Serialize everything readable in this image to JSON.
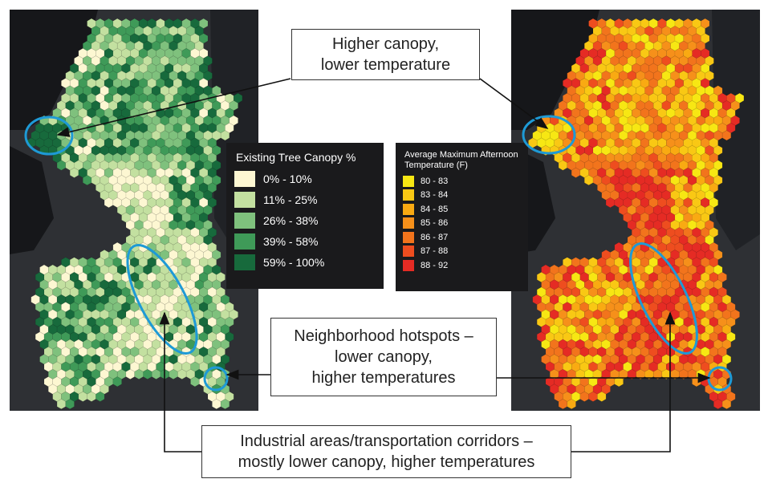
{
  "canopy_legend": {
    "title": "Existing Tree Canopy %",
    "items": [
      {
        "label": "0% - 10%",
        "color": "#fdf7d2"
      },
      {
        "label": "11% - 25%",
        "color": "#c3e0a0"
      },
      {
        "label": "26% - 38%",
        "color": "#7fc17d"
      },
      {
        "label": "39% - 58%",
        "color": "#3f9a58"
      },
      {
        "label": "59% - 100%",
        "color": "#176a3c"
      }
    ]
  },
  "temperature_legend": {
    "title": "Average Maximum Afternoon Temperature (F)",
    "items": [
      {
        "label": "80 - 83",
        "color": "#f7e713"
      },
      {
        "label": "83 - 84",
        "color": "#f9c814"
      },
      {
        "label": "84 - 85",
        "color": "#f9aa12"
      },
      {
        "label": "85 - 86",
        "color": "#f6901a"
      },
      {
        "label": "86 - 87",
        "color": "#f2741c"
      },
      {
        "label": "87 - 88",
        "color": "#ee4d1f"
      },
      {
        "label": "88 - 92",
        "color": "#e52b24"
      }
    ]
  },
  "callouts": {
    "canopy": {
      "line1": "Higher canopy,",
      "line2": "lower temperature"
    },
    "hotspots": {
      "line1": "Neighborhood hotspots –",
      "line2": "lower canopy,",
      "line3": "higher temperatures"
    },
    "industrial": {
      "line1": "Industrial areas/transportation corridors –",
      "line2": "mostly lower canopy, higher temperatures"
    }
  },
  "colors": {
    "highlight_ellipse": "#1e9ad6",
    "land": "#2e3034",
    "water": "#16171a",
    "arrow": "#111111"
  }
}
